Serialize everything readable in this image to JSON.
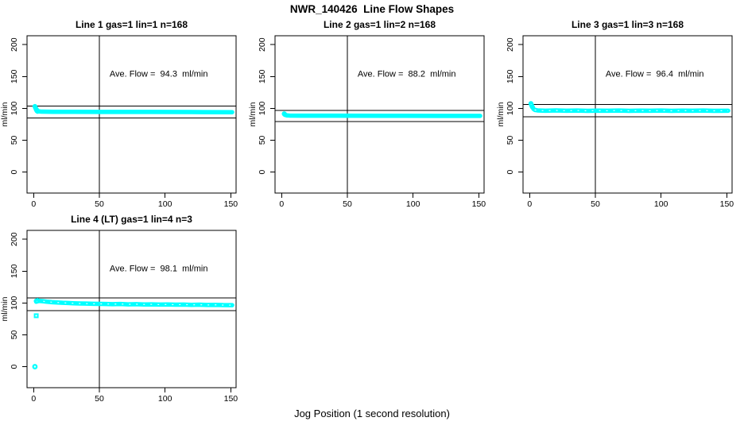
{
  "title": "NWR_140426  Line Flow Shapes",
  "xlabel": "Jog Position (1 second resolution)",
  "colors": {
    "points": "#00ffff",
    "axis": "#000000",
    "background": "#ffffff"
  },
  "chart_data": {
    "type": "scatter",
    "title": "NWR_140426  Line Flow Shapes",
    "xlabel": "Jog Position (1 second resolution)",
    "layout_hint": "2x3 panel grid, 4 panels used, grid off, no legend",
    "shared": {
      "ylabel": "ml/min",
      "xticks": [
        0,
        50,
        100,
        150
      ],
      "yticks": [
        0,
        50,
        100,
        150,
        200
      ],
      "xlim": [
        -5,
        154
      ],
      "ylim": [
        -33,
        214
      ],
      "vline_x": 50
    },
    "panels": [
      {
        "title": "Line 1 gas=1 lin=1 n=168",
        "annotation": "Ave. Flow =  94.3  ml/min",
        "ave_flow": 94.3,
        "n": 168,
        "ref_upper": 103.7,
        "ref_lower": 84.9,
        "texture": "smooth",
        "band": [
          [
            1,
            103
          ],
          [
            2,
            99
          ],
          [
            3,
            96.5
          ],
          [
            4,
            95.3
          ],
          [
            6,
            94.8
          ],
          [
            15,
            94.6
          ],
          [
            30,
            94.5
          ],
          [
            60,
            94.4
          ],
          [
            90,
            94.4
          ],
          [
            120,
            94.2
          ],
          [
            151,
            94.0
          ]
        ],
        "lead_points": [
          [
            1,
            103
          ],
          [
            1.5,
            100.5
          ],
          [
            2,
            98
          ],
          [
            2.5,
            96.2
          ],
          [
            3,
            95.2
          ]
        ],
        "outliers": []
      },
      {
        "title": "Line 2 gas=1 lin=2 n=168",
        "annotation": "Ave. Flow =  88.2  ml/min",
        "ave_flow": 88.2,
        "n": 168,
        "ref_upper": 97.0,
        "ref_lower": 79.4,
        "texture": "smooth",
        "band": [
          [
            2,
            91
          ],
          [
            3,
            89.6
          ],
          [
            4,
            89
          ],
          [
            6,
            88.7
          ],
          [
            15,
            88.5
          ],
          [
            40,
            88.4
          ],
          [
            80,
            88.3
          ],
          [
            120,
            88.2
          ],
          [
            151,
            88.2
          ]
        ],
        "lead_points": [
          [
            2,
            91.5
          ],
          [
            2.5,
            90.2
          ]
        ],
        "outliers": []
      },
      {
        "title": "Line 3 gas=1 lin=3 n=168",
        "annotation": "Ave. Flow =  96.4  ml/min",
        "ave_flow": 96.4,
        "n": 168,
        "ref_upper": 106.0,
        "ref_lower": 86.8,
        "texture": "speckled",
        "band": [
          [
            1,
            107
          ],
          [
            2,
            103
          ],
          [
            3,
            99
          ],
          [
            4,
            97.5
          ],
          [
            6,
            96.8
          ],
          [
            12,
            96.3
          ],
          [
            20,
            96.7
          ],
          [
            28,
            96.2
          ],
          [
            36,
            96.6
          ],
          [
            44,
            96.1
          ],
          [
            52,
            96.5
          ],
          [
            60,
            96.2
          ],
          [
            68,
            96.6
          ],
          [
            76,
            96.1
          ],
          [
            84,
            96.5
          ],
          [
            92,
            96.2
          ],
          [
            100,
            96.6
          ],
          [
            108,
            96.1
          ],
          [
            116,
            96.5
          ],
          [
            124,
            96.2
          ],
          [
            132,
            96.6
          ],
          [
            140,
            96.1
          ],
          [
            151,
            96.3
          ]
        ],
        "lead_points": [
          [
            1,
            107.5
          ],
          [
            1.5,
            105
          ],
          [
            2,
            102.5
          ]
        ],
        "outliers": []
      },
      {
        "title": "Line 4 (LT) gas=1 lin=4 n=3",
        "annotation": "Ave. Flow =  98.1  ml/min",
        "ave_flow": 98.1,
        "n": 3,
        "ref_upper": 107.9,
        "ref_lower": 88.3,
        "texture": "speckled",
        "band": [
          [
            2,
            102
          ],
          [
            4,
            103.3
          ],
          [
            7,
            102.8
          ],
          [
            10,
            102
          ],
          [
            14,
            101.3
          ],
          [
            18,
            100.8
          ],
          [
            22,
            100.3
          ],
          [
            26,
            100
          ],
          [
            30,
            99.6
          ],
          [
            35,
            99.2
          ],
          [
            40,
            99
          ],
          [
            45,
            98.8
          ],
          [
            50,
            98.6
          ],
          [
            55,
            98.5
          ],
          [
            60,
            98.2
          ],
          [
            66,
            98.4
          ],
          [
            72,
            97.9
          ],
          [
            78,
            98.1
          ],
          [
            84,
            97.7
          ],
          [
            90,
            97.9
          ],
          [
            96,
            97.5
          ],
          [
            102,
            97.7
          ],
          [
            108,
            97.3
          ],
          [
            114,
            97.5
          ],
          [
            120,
            97.1
          ],
          [
            126,
            97.3
          ],
          [
            132,
            96.9
          ],
          [
            138,
            97.1
          ],
          [
            144,
            96.7
          ],
          [
            151,
            96.6
          ]
        ],
        "lead_points": [
          [
            2,
            103
          ],
          [
            3,
            104
          ]
        ],
        "outliers": [
          {
            "x": 2,
            "y": 80,
            "shape": "square-dot"
          },
          {
            "x": 1,
            "y": 0,
            "shape": "circle-dot"
          }
        ]
      }
    ]
  }
}
